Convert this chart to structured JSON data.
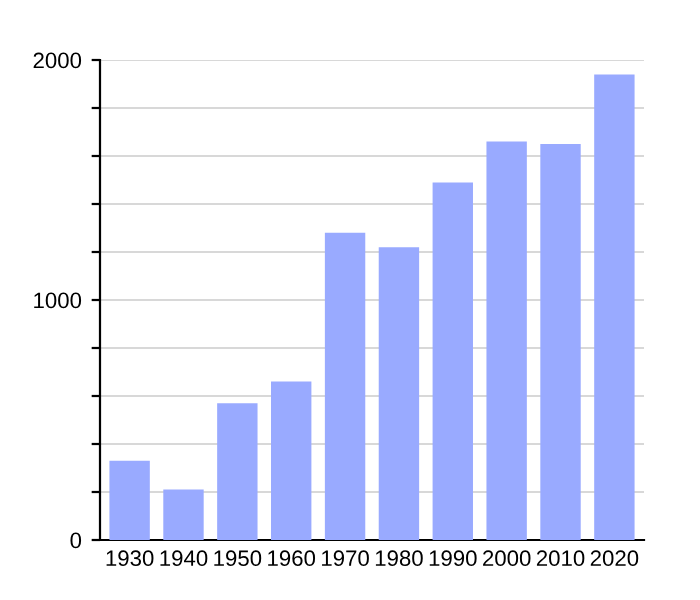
{
  "chart_data": {
    "type": "bar",
    "categories": [
      "1930",
      "1940",
      "1950",
      "1960",
      "1970",
      "1980",
      "1990",
      "2000",
      "2010",
      "2020"
    ],
    "values": [
      330,
      210,
      570,
      660,
      1280,
      1220,
      1490,
      1660,
      1650,
      1940
    ],
    "color": "#99aaff",
    "ylim": [
      0,
      2000
    ],
    "yticks": [
      0,
      {
        "value": 200,
        "label": null
      },
      {
        "value": 400,
        "label": null
      },
      {
        "value": 600,
        "label": null
      },
      {
        "value": 800,
        "label": null
      },
      1000,
      {
        "value": 1200,
        "label": null
      },
      {
        "value": 1400,
        "label": null
      },
      {
        "value": 1600,
        "label": null
      },
      {
        "value": 1800,
        "label": null
      },
      2000
    ],
    "grid": "y"
  }
}
